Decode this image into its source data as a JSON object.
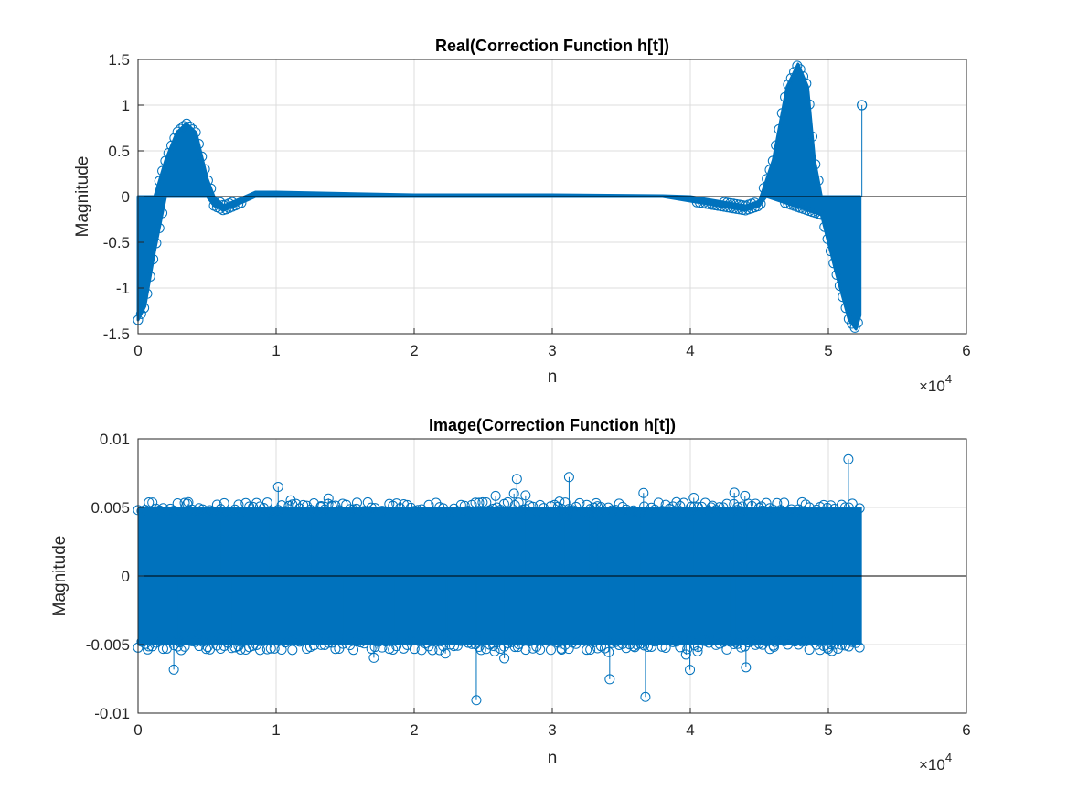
{
  "chart_data": [
    {
      "type": "stem",
      "title": "Real(Correction Function h[t])",
      "xlabel": "n",
      "ylabel": "Magnitude",
      "xlim": [
        0,
        60000
      ],
      "ylim": [
        -1.5,
        1.5
      ],
      "x_ticks": [
        0,
        10000,
        20000,
        30000,
        40000,
        50000,
        60000
      ],
      "x_tick_labels": [
        "0",
        "1",
        "2",
        "3",
        "4",
        "5",
        "6"
      ],
      "x_exponent_label": "×10",
      "x_exponent_power": "4",
      "y_ticks": [
        1.5,
        1,
        0.5,
        0,
        -0.5,
        -1,
        -1.5
      ],
      "y_tick_labels": [
        "1.5",
        "1",
        "0.5",
        "0",
        "-0.5",
        "-1",
        "-1.5"
      ],
      "grid": true,
      "color": "#0072BD",
      "series": [
        {
          "n_points": 52428,
          "x_range": [
            0,
            52428
          ],
          "envelope_upper": [
            [
              0,
              0
            ],
            [
              1200,
              0
            ],
            [
              2000,
              0.4
            ],
            [
              2800,
              0.7
            ],
            [
              3500,
              0.8
            ],
            [
              4200,
              0.7
            ],
            [
              5000,
              0.2
            ],
            [
              5500,
              0
            ],
            [
              6200,
              -0.1
            ],
            [
              7000,
              -0.05
            ],
            [
              8500,
              0.05
            ],
            [
              10000,
              0.05
            ],
            [
              20000,
              0.02
            ],
            [
              30000,
              0.02
            ],
            [
              38000,
              0.01
            ],
            [
              40000,
              0
            ],
            [
              42000,
              -0.05
            ],
            [
              44000,
              -0.1
            ],
            [
              45000,
              -0.05
            ],
            [
              46000,
              0.4
            ],
            [
              47000,
              1.2
            ],
            [
              47800,
              1.45
            ],
            [
              48500,
              1.2
            ],
            [
              49000,
              0.4
            ],
            [
              49500,
              0
            ],
            [
              52300,
              0
            ]
          ],
          "envelope_lower": [
            [
              0,
              -1.35
            ],
            [
              500,
              -1.2
            ],
            [
              1200,
              -0.6
            ],
            [
              2000,
              0
            ],
            [
              5000,
              0
            ],
            [
              5500,
              -0.1
            ],
            [
              6200,
              -0.15
            ],
            [
              7000,
              -0.1
            ],
            [
              8500,
              0
            ],
            [
              10000,
              0
            ],
            [
              20000,
              0
            ],
            [
              30000,
              0
            ],
            [
              38000,
              0
            ],
            [
              40000,
              -0.05
            ],
            [
              42000,
              -0.1
            ],
            [
              44000,
              -0.15
            ],
            [
              45000,
              -0.1
            ],
            [
              45500,
              0
            ],
            [
              49500,
              -0.2
            ],
            [
              50500,
              -0.8
            ],
            [
              51500,
              -1.35
            ],
            [
              52000,
              -1.45
            ],
            [
              52300,
              -1.3
            ]
          ],
          "isolated_points": [
            {
              "x": 52428,
              "y": 1
            }
          ]
        }
      ]
    },
    {
      "type": "stem",
      "title": "Image(Correction Function h[t])",
      "xlabel": "n",
      "ylabel": "Magnitude",
      "xlim": [
        0,
        60000
      ],
      "ylim": [
        -0.01,
        0.01
      ],
      "x_ticks": [
        0,
        10000,
        20000,
        30000,
        40000,
        50000,
        60000
      ],
      "x_tick_labels": [
        "0",
        "1",
        "2",
        "3",
        "4",
        "5",
        "6"
      ],
      "x_exponent_label": "×10",
      "x_exponent_power": "4",
      "y_ticks": [
        0.01,
        0.005,
        0,
        -0.005,
        -0.01
      ],
      "y_tick_labels": [
        "0.01",
        "0.005",
        "0",
        "-0.005",
        "-0.01"
      ],
      "grid": true,
      "color": "#0072BD",
      "series": [
        {
          "n_points": 52428,
          "x_range": [
            0,
            52428
          ],
          "dense_band": [
            -0.005,
            0.005
          ],
          "max_abs": 0.0095
        }
      ]
    }
  ]
}
